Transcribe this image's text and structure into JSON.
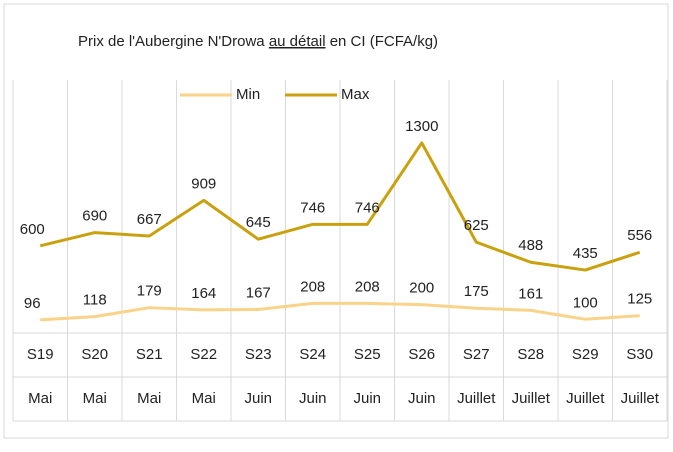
{
  "chart_data": {
    "type": "line",
    "title": [
      "Prix de l'Aubergine N'Drowa ",
      "au détail",
      " en CI (FCFA/kg)"
    ],
    "categories": [
      "S19",
      "S20",
      "S21",
      "S22",
      "S23",
      "S24",
      "S25",
      "S26",
      "S27",
      "S28",
      "S29",
      "S30"
    ],
    "months": [
      "Mai",
      "Mai",
      "Mai",
      "Mai",
      "Juin",
      "Juin",
      "Juin",
      "Juin",
      "Juillet",
      "Juillet",
      "Juillet",
      "Juillet"
    ],
    "series": [
      {
        "name": "Min",
        "color": "#f9d38a",
        "values": [
          96,
          118,
          179,
          164,
          167,
          208,
          208,
          200,
          175,
          161,
          100,
          125
        ]
      },
      {
        "name": "Max",
        "color": "#c9a10f",
        "values": [
          600,
          690,
          667,
          909,
          645,
          746,
          746,
          1300,
          625,
          488,
          435,
          556
        ]
      }
    ],
    "grid": true,
    "legend": "top"
  }
}
